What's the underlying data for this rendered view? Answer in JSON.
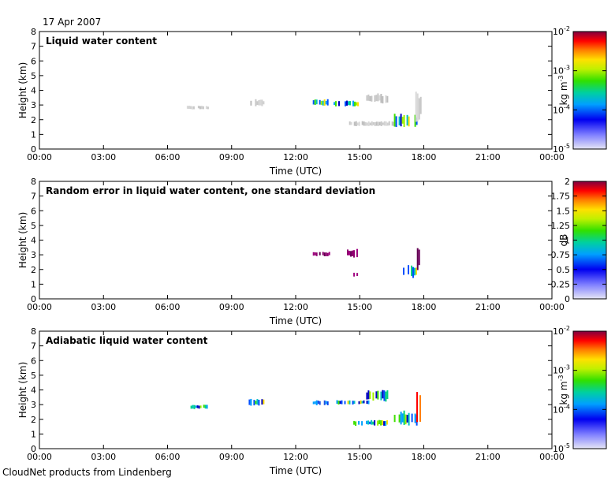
{
  "date_label": "17 Apr 2007",
  "footer": "CloudNet products from Lindenberg",
  "chart_data": [
    {
      "type": "heatmap",
      "title": "Liquid water content",
      "xlabel": "Time (UTC)",
      "ylabel": "Height (km)",
      "xticks": [
        "00:00",
        "03:00",
        "06:00",
        "09:00",
        "12:00",
        "15:00",
        "18:00",
        "21:00",
        "00:00"
      ],
      "yticks": [
        "0",
        "1",
        "2",
        "3",
        "4",
        "5",
        "6",
        "7",
        "8"
      ],
      "ylim": [
        0,
        8
      ],
      "colorbar": {
        "unit": "kg m-3",
        "unit_base": "kg m",
        "unit_exp": "-3",
        "scale": "log",
        "ticks": [
          {
            "base": "10",
            "exp": "-2"
          },
          {
            "base": "10",
            "exp": "-3"
          },
          {
            "base": "10",
            "exp": "-4"
          },
          {
            "base": "10",
            "exp": "-5"
          }
        ]
      },
      "patches": [
        {
          "t0": 6.9,
          "t1": 7.9,
          "h0": 2.7,
          "h1": 2.95,
          "c": "grey"
        },
        {
          "t0": 9.8,
          "t1": 10.5,
          "h0": 2.9,
          "h1": 3.4,
          "c": "grey"
        },
        {
          "t0": 12.8,
          "t1": 13.5,
          "h0": 2.95,
          "h1": 3.4,
          "c": "mix"
        },
        {
          "t0": 13.7,
          "t1": 14.9,
          "h0": 2.9,
          "h1": 3.3,
          "c": "mix"
        },
        {
          "t0": 15.3,
          "t1": 16.3,
          "h0": 3.1,
          "h1": 3.8,
          "c": "grey"
        },
        {
          "t0": 14.5,
          "t1": 16.6,
          "h0": 1.55,
          "h1": 1.9,
          "c": "grey"
        },
        {
          "t0": 16.6,
          "t1": 17.7,
          "h0": 1.5,
          "h1": 2.4,
          "c": "mix"
        },
        {
          "t0": 17.6,
          "t1": 17.85,
          "h0": 1.8,
          "h1": 4.0,
          "c": "grey"
        }
      ]
    },
    {
      "type": "heatmap",
      "title": "Random error in liquid water content, one standard deviation",
      "xlabel": "Time (UTC)",
      "ylabel": "Height (km)",
      "xticks": [
        "00:00",
        "03:00",
        "06:00",
        "09:00",
        "12:00",
        "15:00",
        "18:00",
        "21:00",
        "00:00"
      ],
      "yticks": [
        "0",
        "1",
        "2",
        "3",
        "4",
        "5",
        "6",
        "7",
        "8"
      ],
      "ylim": [
        0,
        8
      ],
      "colorbar": {
        "unit": "dB",
        "scale": "linear",
        "ticks": [
          "2",
          "1.75",
          "1.5",
          "1.25",
          "1",
          "0.75",
          "0.5",
          "0.25",
          "0"
        ]
      },
      "patches": [
        {
          "t0": 12.8,
          "t1": 13.6,
          "h0": 2.9,
          "h1": 3.2,
          "c": "purple"
        },
        {
          "t0": 14.4,
          "t1": 14.9,
          "h0": 2.8,
          "h1": 3.4,
          "c": "purple"
        },
        {
          "t0": 14.7,
          "t1": 14.9,
          "h0": 1.5,
          "h1": 1.8,
          "c": "purple"
        },
        {
          "t0": 16.8,
          "t1": 17.75,
          "h0": 1.4,
          "h1": 2.3,
          "c": "mix"
        },
        {
          "t0": 17.6,
          "t1": 17.75,
          "h0": 1.6,
          "h1": 4.0,
          "c": "purple"
        }
      ]
    },
    {
      "type": "heatmap",
      "title": "Adiabatic liquid water content",
      "xlabel": "Time (UTC)",
      "ylabel": "Height (km)",
      "xticks": [
        "00:00",
        "03:00",
        "06:00",
        "09:00",
        "12:00",
        "15:00",
        "18:00",
        "21:00",
        "00:00"
      ],
      "yticks": [
        "0",
        "1",
        "2",
        "3",
        "4",
        "5",
        "6",
        "7",
        "8"
      ],
      "ylim": [
        0,
        8
      ],
      "colorbar": {
        "unit": "kg m-3",
        "unit_base": "kg m",
        "unit_exp": "-3",
        "scale": "log",
        "ticks": [
          {
            "base": "10",
            "exp": "-2"
          },
          {
            "base": "10",
            "exp": "-3"
          },
          {
            "base": "10",
            "exp": "-4"
          },
          {
            "base": "10",
            "exp": "-5"
          }
        ]
      },
      "patches": [
        {
          "t0": 7.0,
          "t1": 7.9,
          "h0": 2.7,
          "h1": 3.0,
          "c": "mix"
        },
        {
          "t0": 9.8,
          "t1": 10.5,
          "h0": 2.9,
          "h1": 3.4,
          "c": "mix"
        },
        {
          "t0": 12.8,
          "t1": 13.6,
          "h0": 2.95,
          "h1": 3.3,
          "c": "blue"
        },
        {
          "t0": 13.9,
          "t1": 15.4,
          "h0": 3.0,
          "h1": 3.3,
          "c": "mix"
        },
        {
          "t0": 15.3,
          "t1": 16.3,
          "h0": 3.2,
          "h1": 4.0,
          "c": "mix"
        },
        {
          "t0": 14.7,
          "t1": 16.3,
          "h0": 1.55,
          "h1": 1.95,
          "c": "mix"
        },
        {
          "t0": 16.6,
          "t1": 17.7,
          "h0": 1.5,
          "h1": 2.6,
          "c": "mix"
        },
        {
          "t0": 17.5,
          "t1": 17.8,
          "h0": 1.8,
          "h1": 4.1,
          "c": "hot"
        }
      ]
    }
  ]
}
